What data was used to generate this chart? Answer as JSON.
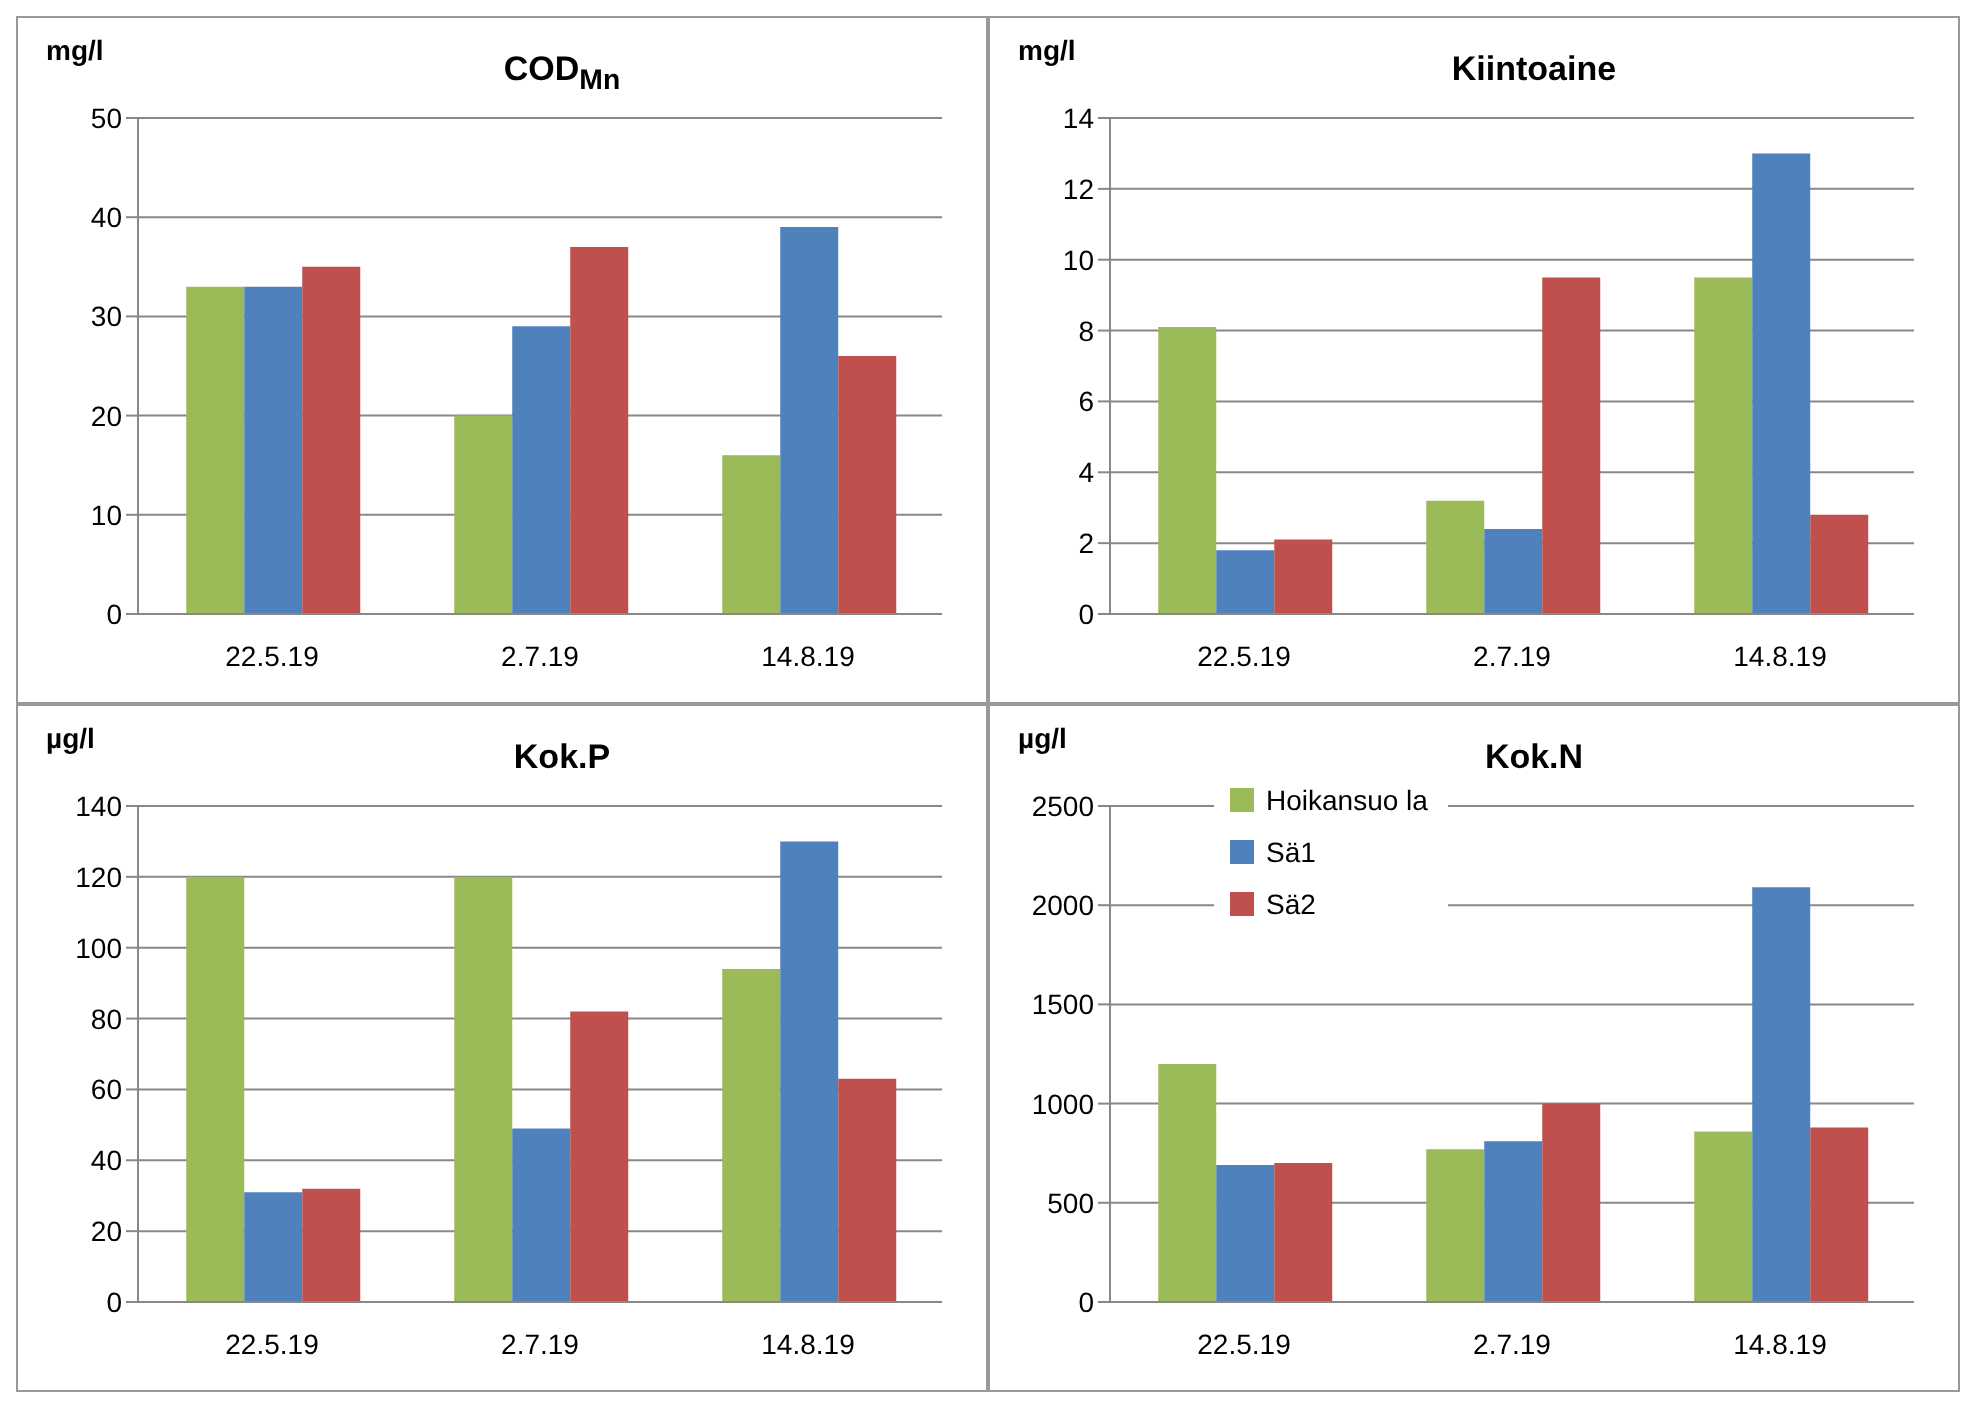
{
  "chart_data": [
    {
      "type": "bar",
      "title": "COD$_{Mn}$",
      "ylabel": "mg/l",
      "categories": [
        "22.5.19",
        "2.7.19",
        "14.8.19"
      ],
      "ylim": [
        0,
        50
      ],
      "yticks": [
        0,
        10,
        20,
        30,
        40,
        50
      ],
      "grid": "y",
      "legend": false,
      "series": [
        {
          "color": "#9bbb59",
          "values": [
            33,
            20,
            16
          ]
        },
        {
          "color": "#4f81bd",
          "values": [
            33,
            29,
            39
          ]
        },
        {
          "color": "#c0504d",
          "values": [
            35,
            37,
            26
          ]
        }
      ]
    },
    {
      "type": "bar",
      "title": "Kiintoaine",
      "ylabel": "mg/l",
      "categories": [
        "22.5.19",
        "2.7.19",
        "14.8.19"
      ],
      "ylim": [
        0,
        14
      ],
      "yticks": [
        0,
        2,
        4,
        6,
        8,
        10,
        12,
        14
      ],
      "grid": "y",
      "legend": false,
      "series": [
        {
          "color": "#9bbb59",
          "values": [
            8.1,
            3.2,
            9.5
          ]
        },
        {
          "color": "#4f81bd",
          "values": [
            1.8,
            2.4,
            13
          ]
        },
        {
          "color": "#c0504d",
          "values": [
            2.1,
            9.5,
            2.8
          ]
        }
      ]
    },
    {
      "type": "bar",
      "title": "Kok.P",
      "ylabel": "µg/l",
      "categories": [
        "22.5.19",
        "2.7.19",
        "14.8.19"
      ],
      "ylim": [
        0,
        140
      ],
      "yticks": [
        0,
        20,
        40,
        60,
        80,
        100,
        120,
        140
      ],
      "grid": "y",
      "legend": false,
      "series": [
        {
          "color": "#9bbb59",
          "values": [
            120,
            120,
            94
          ]
        },
        {
          "color": "#4f81bd",
          "values": [
            31,
            49,
            130
          ]
        },
        {
          "color": "#c0504d",
          "values": [
            32,
            82,
            63
          ]
        }
      ]
    },
    {
      "type": "bar",
      "title": "Kok.N",
      "ylabel": "µg/l",
      "categories": [
        "22.5.19",
        "2.7.19",
        "14.8.19"
      ],
      "ylim": [
        0,
        2500
      ],
      "yticks": [
        0,
        500,
        1000,
        1500,
        2000,
        2500
      ],
      "grid": "y",
      "legend": "top left",
      "series": [
        {
          "name": "Hoikansuo la",
          "color": "#9bbb59",
          "values": [
            1200,
            770,
            860
          ]
        },
        {
          "name": "Sä1",
          "color": "#4f81bd",
          "values": [
            690,
            810,
            2090
          ]
        },
        {
          "name": "Sä2",
          "color": "#c0504d",
          "values": [
            700,
            1000,
            880
          ]
        }
      ]
    }
  ]
}
